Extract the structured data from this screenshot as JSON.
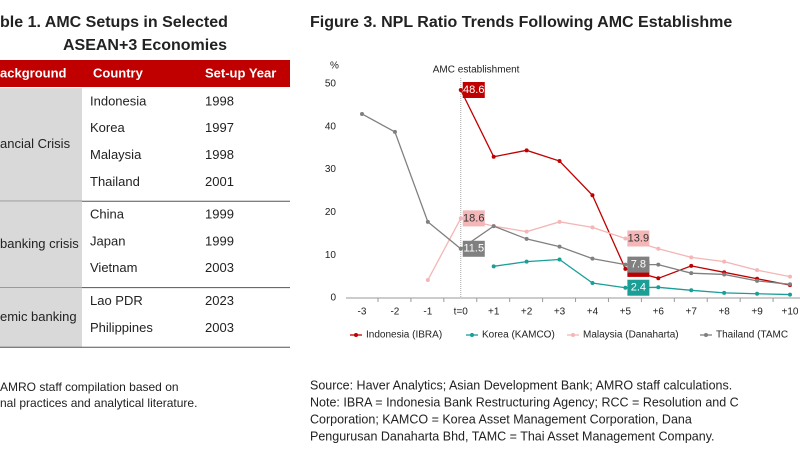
{
  "table": {
    "title": [
      "ble 1. AMC Setups in Selected",
      "ASEAN+3 Economies"
    ],
    "header": [
      "ackground",
      "Country",
      "Set-up Year"
    ],
    "groups": [
      {
        "label": "ancial Crisis",
        "rows": [
          [
            "Indonesia",
            1998
          ],
          [
            "Korea",
            1997
          ],
          [
            "Malaysia",
            1998
          ],
          [
            "Thailand",
            2001
          ]
        ]
      },
      {
        "label": "banking crisis",
        "rows": [
          [
            "China",
            1999
          ],
          [
            "Japan",
            1999
          ],
          [
            "Vietnam",
            2003
          ]
        ]
      },
      {
        "label": "emic banking",
        "rows": [
          [
            "Lao PDR",
            2023
          ],
          [
            "Philippines",
            2003
          ]
        ]
      }
    ],
    "note": [
      "AMRO staff compilation based on",
      "nal practices and analytical literature."
    ]
  },
  "chart_data": {
    "type": "line",
    "title": "Figure 3. NPL Ratio Trends Following AMC Establishme",
    "y_label": "%",
    "annotation": "AMC establishment",
    "annotation_category": 3,
    "categories": [
      "-3",
      "-2",
      "-1",
      "t=0",
      "+1",
      "+2",
      "+3",
      "+4",
      "+5",
      "+6",
      "+7",
      "+8",
      "+9",
      "+10"
    ],
    "ylim": [
      0,
      50
    ],
    "yticks": [
      0,
      10,
      20,
      30,
      40,
      50
    ],
    "label_indices": [
      3,
      8
    ],
    "series": [
      {
        "name": "Indonesia (IBRA)",
        "color": "#c00000",
        "label_text": "#ffffff",
        "values": [
          null,
          null,
          null,
          48.6,
          33,
          34.5,
          32,
          24,
          6.8,
          4.6,
          7.5,
          6,
          4.5,
          3
        ]
      },
      {
        "name": "Korea (KAMCO)",
        "color": "#1a9e96",
        "label_text": "#ffffff",
        "values": [
          null,
          null,
          null,
          null,
          7.4,
          8.5,
          9,
          3.5,
          2.4,
          2.5,
          1.8,
          1.2,
          1,
          0.8
        ]
      },
      {
        "name": "Malaysia (Danaharta)",
        "color": "#f4b6b6",
        "label_text": "#333333",
        "values": [
          null,
          null,
          4.2,
          18.6,
          16.8,
          15.5,
          17.8,
          16.5,
          13.9,
          11.5,
          9.5,
          8.5,
          6.5,
          5
        ]
      },
      {
        "name": "Thailand (TAMC",
        "color": "#808080",
        "label_text": "#ffffff",
        "values": [
          43,
          38.8,
          17.8,
          11.5,
          16.8,
          13.8,
          12,
          9.2,
          7.8,
          7.8,
          5.8,
          5.5,
          4,
          3.2
        ]
      }
    ]
  },
  "notes": [
    "Source: Haver Analytics; Asian Development Bank; AMRO staff calculations.",
    "Note: IBRA = Indonesia Bank Restructuring Agency; RCC = Resolution and C",
    "Corporation; KAMCO = Korea Asset Management Corporation, Dana",
    "Pengurusan Danaharta Bhd, TAMC = Thai Asset Management Company."
  ]
}
